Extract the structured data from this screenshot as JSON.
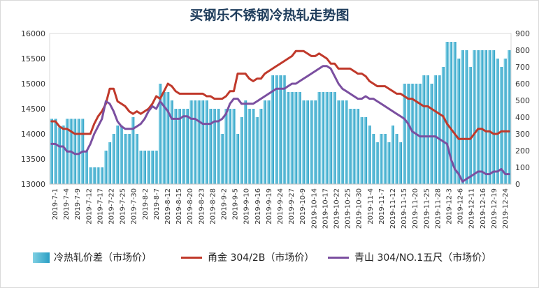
{
  "title": "买钢乐不锈钢冷热轧走势图",
  "colors": {
    "bar": "#2a9fc5",
    "yongjin": "#c0392b",
    "qingshan": "#7b4fa0"
  },
  "chart_data": {
    "type": "bar+line",
    "left_axis": {
      "ylim": [
        13000,
        16000
      ],
      "ticks": [
        "13000",
        "13500",
        "14000",
        "14500",
        "15000",
        "15500",
        "16000"
      ]
    },
    "right_axis": {
      "ylim": [
        0,
        900
      ],
      "ticks": [
        "0",
        "100",
        "200",
        "300",
        "400",
        "500",
        "600",
        "700",
        "800",
        "900"
      ]
    },
    "x_tick_labels": [
      "2019-7-1",
      "2019-7-4",
      "2019-7-9",
      "2019-7-12",
      "2019-7-17",
      "2019-7-22",
      "2019-7-25",
      "2019-7-30",
      "2019-8-2",
      "2019-8-7",
      "2019-8-12",
      "2019-8-15",
      "2019-8-20",
      "2019-8-23",
      "2019-8-28",
      "2019-9-2",
      "2019-9-5",
      "2019-9-10",
      "2019-9-16",
      "2019-9-19",
      "2019-9-24",
      "2019-9-27",
      "2019-10-9",
      "2019-10-14",
      "2019-10-17",
      "2019-10-22",
      "2019-10-25",
      "2019-10-30",
      "2019-11-4",
      "2019-11-7",
      "2019-11-12",
      "2019-11-15",
      "2019-11-20",
      "2019-11-25",
      "2019-11-28",
      "2019-12-3",
      "2019-12-6",
      "2019-12-11",
      "2019-12-16",
      "2019-12-19",
      "2019-12-24"
    ],
    "series": [
      {
        "name": "冷热轧价差（市场价）",
        "kind": "bar",
        "axis": "right",
        "values": [
          390,
          390,
          340,
          350,
          390,
          390,
          390,
          390,
          390,
          200,
          100,
          100,
          100,
          100,
          200,
          250,
          300,
          350,
          350,
          300,
          300,
          400,
          300,
          200,
          200,
          200,
          200,
          200,
          600,
          550,
          550,
          500,
          450,
          450,
          450,
          450,
          500,
          500,
          500,
          500,
          500,
          450,
          450,
          450,
          300,
          450,
          450,
          450,
          300,
          400,
          500,
          450,
          450,
          400,
          450,
          500,
          500,
          650,
          650,
          650,
          650,
          550,
          550,
          550,
          550,
          500,
          500,
          500,
          500,
          550,
          550,
          550,
          550,
          550,
          500,
          500,
          500,
          450,
          450,
          450,
          400,
          400,
          350,
          300,
          250,
          300,
          300,
          250,
          350,
          300,
          250,
          600,
          600,
          600,
          600,
          600,
          650,
          650,
          600,
          650,
          650,
          700,
          850,
          850,
          850,
          750,
          800,
          800,
          700,
          800,
          800,
          800,
          800,
          800,
          800,
          750,
          700,
          750,
          800
        ]
      },
      {
        "name": "甬金 304/2B（市场价）",
        "kind": "line",
        "axis": "left",
        "values": [
          14250,
          14250,
          14150,
          14100,
          14100,
          14050,
          14000,
          14000,
          14000,
          14000,
          14000,
          14200,
          14350,
          14450,
          14600,
          14900,
          14900,
          14650,
          14600,
          14550,
          14450,
          14400,
          14450,
          14400,
          14450,
          14500,
          14600,
          14750,
          14700,
          14850,
          15000,
          14950,
          14850,
          14800,
          14800,
          14800,
          14800,
          14800,
          14800,
          14800,
          14750,
          14750,
          14700,
          14700,
          14700,
          14750,
          14850,
          14850,
          15200,
          15200,
          15200,
          15100,
          15050,
          15100,
          15100,
          15200,
          15250,
          15300,
          15350,
          15400,
          15450,
          15500,
          15550,
          15650,
          15650,
          15650,
          15600,
          15550,
          15550,
          15600,
          15550,
          15500,
          15400,
          15400,
          15300,
          15300,
          15300,
          15300,
          15250,
          15200,
          15200,
          15150,
          15050,
          15000,
          14950,
          14950,
          14950,
          14900,
          14850,
          14800,
          14800,
          14750,
          14700,
          14700,
          14650,
          14600,
          14550,
          14550,
          14500,
          14450,
          14400,
          14350,
          14200,
          14100,
          14000,
          13900,
          13900,
          13900,
          13900,
          14000,
          14100,
          14100,
          14050,
          14050,
          14000,
          14000,
          14050,
          14050,
          14050
        ]
      },
      {
        "name": "青山 304/NO.1五尺（市场价）",
        "kind": "line",
        "axis": "left",
        "values": [
          13800,
          13800,
          13750,
          13750,
          13650,
          13650,
          13600,
          13600,
          13650,
          13650,
          13800,
          14000,
          14150,
          14300,
          14650,
          14600,
          14450,
          14250,
          14150,
          14100,
          14100,
          14100,
          14150,
          14200,
          14300,
          14450,
          14550,
          14500,
          14650,
          14550,
          14450,
          14300,
          14300,
          14300,
          14350,
          14350,
          14300,
          14300,
          14250,
          14200,
          14200,
          14200,
          14250,
          14250,
          14300,
          14400,
          14600,
          14700,
          14700,
          14600,
          14600,
          14600,
          14600,
          14650,
          14700,
          14750,
          14800,
          14850,
          14900,
          14900,
          14900,
          14950,
          15000,
          15000,
          15050,
          15100,
          15150,
          15200,
          15250,
          15300,
          15350,
          15350,
          15300,
          15150,
          15000,
          14900,
          14850,
          14800,
          14750,
          14700,
          14700,
          14750,
          14700,
          14700,
          14650,
          14600,
          14550,
          14500,
          14450,
          14400,
          14350,
          14300,
          14200,
          14050,
          14000,
          13950,
          13950,
          13950,
          13950,
          13950,
          13900,
          13850,
          13800,
          13500,
          13300,
          13200,
          13050,
          13100,
          13150,
          13200,
          13250,
          13250,
          13200,
          13200,
          13250,
          13250,
          13300,
          13200,
          13200
        ]
      }
    ]
  },
  "legend": {
    "bar_label": "冷热轧价差（市场价）",
    "yongjin_label": "甬金 304/2B（市场价）",
    "qingshan_label": "青山 304/NO.1五尺（市场价）"
  }
}
